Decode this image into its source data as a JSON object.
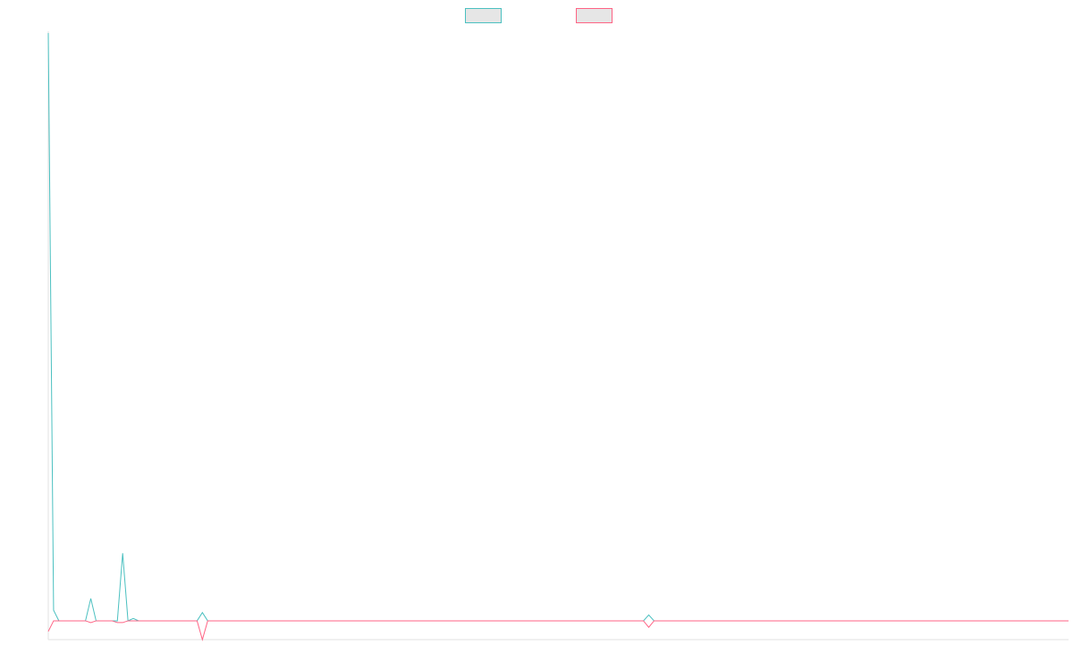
{
  "colors": {
    "background": "#ffffff",
    "axis": "#e0e0e0",
    "legend_fill": "#e6e6e6"
  },
  "chart_data": {
    "type": "line",
    "title": "",
    "xlabel": "",
    "ylabel": "",
    "grid": false,
    "legend_placement": "top-center",
    "x": [
      0,
      1,
      2,
      3,
      4,
      5,
      6,
      7,
      8,
      9,
      10,
      11,
      12,
      13,
      14,
      15,
      16,
      17,
      18,
      19,
      20,
      25,
      28,
      29,
      30,
      31,
      32,
      35,
      40,
      50,
      60,
      70,
      80,
      90,
      100,
      110,
      112,
      113,
      114,
      120,
      140,
      160,
      180,
      192
    ],
    "xlim": [
      0,
      192
    ],
    "ylim": [
      -3.2,
      100
    ],
    "series": [
      {
        "color": "#4bc0c0",
        "values": [
          100,
          1.8,
          0,
          0,
          0,
          0,
          0,
          0,
          3.8,
          0,
          0,
          0,
          0,
          0,
          11.5,
          0,
          0.4,
          0,
          0,
          0,
          0,
          0,
          0,
          1.4,
          0,
          0,
          0,
          0,
          0,
          0,
          0,
          0,
          0,
          0,
          0,
          0,
          0,
          1.0,
          0,
          0,
          0,
          0,
          0,
          0
        ]
      },
      {
        "color": "#ff6384",
        "values": [
          -1.8,
          0,
          0,
          0,
          0,
          0,
          0,
          0,
          -0.3,
          0,
          0,
          0,
          0,
          -0.3,
          -0.3,
          0,
          0,
          0,
          0,
          0,
          0,
          0,
          0,
          -3.2,
          0,
          0,
          0,
          0,
          0,
          0,
          0,
          0,
          0,
          0,
          0,
          0,
          0,
          -1.1,
          0,
          0,
          0,
          0,
          0,
          0
        ]
      }
    ]
  }
}
